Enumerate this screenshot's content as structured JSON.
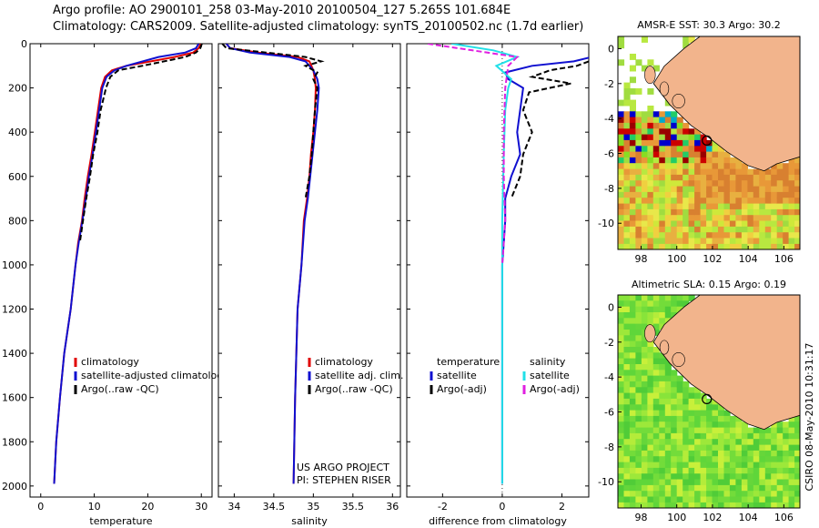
{
  "header": {
    "line1": "Argo profile: AO 2900101_258 03-May-2010 20100504_127 5.265S 101.684E",
    "line2": "Climatology: CARS2009. Satellite-adjusted climatology: synTS_20100502.nc (1.7d earlier)"
  },
  "colors": {
    "climatology": "#e00000",
    "satellite": "#1010d0",
    "argo": "#000000",
    "satellite_sal": "#22e0e8",
    "argo_adj_sal": "#e020e0",
    "land": "#f2b48c",
    "ocean_green": "#33cc33"
  },
  "chart_data": [
    {
      "id": "temperature",
      "type": "line",
      "xlabel": "temperature",
      "ylabel": "",
      "xlim": [
        -2,
        32
      ],
      "ylim": [
        0,
        2050
      ],
      "y_reversed": true,
      "xticks": [
        0,
        10,
        20,
        30
      ],
      "yticks": [
        0,
        200,
        400,
        600,
        800,
        1000,
        1200,
        1400,
        1600,
        1800,
        2000
      ],
      "legend": [
        "climatology",
        "satellite-adjusted climatology",
        "Argo(..raw -QC)"
      ],
      "series": [
        {
          "name": "climatology",
          "color": "#e00000",
          "dash": "",
          "x": [
            29.9,
            29.5,
            28.5,
            25,
            16,
            13.3,
            12,
            11.3,
            10.7,
            10.1,
            9.5,
            8.8,
            8.2,
            7.7,
            7,
            6.5,
            5.6,
            4.4,
            3.6,
            2.9,
            2.5
          ],
          "y": [
            0,
            20,
            40,
            60,
            100,
            120,
            150,
            200,
            300,
            400,
            500,
            600,
            700,
            800,
            900,
            1000,
            1200,
            1400,
            1600,
            1800,
            1990
          ]
        },
        {
          "name": "satellite-adjusted climatology",
          "color": "#1010d0",
          "dash": "",
          "x": [
            29.5,
            29,
            27,
            22,
            16,
            13.8,
            12.3,
            11.5,
            10.9,
            10.3,
            9.7,
            9,
            8.4,
            7.8,
            7.1,
            6.5,
            5.6,
            4.4,
            3.6,
            2.9,
            2.5
          ],
          "y": [
            0,
            20,
            40,
            60,
            100,
            120,
            150,
            200,
            300,
            400,
            500,
            600,
            700,
            800,
            900,
            1000,
            1200,
            1400,
            1600,
            1800,
            1990
          ]
        },
        {
          "name": "Argo(..raw -QC)",
          "color": "#000000",
          "dash": "6,3",
          "x": [
            30.1,
            29.8,
            29,
            27,
            19,
            14.5,
            13,
            12.2,
            11.2,
            10.6,
            9.8,
            9.2,
            8.5,
            7.9,
            7.3
          ],
          "y": [
            0,
            20,
            40,
            60,
            100,
            120,
            150,
            200,
            300,
            400,
            500,
            600,
            700,
            800,
            900
          ]
        }
      ]
    },
    {
      "id": "salinity",
      "type": "line",
      "xlabel": "salinity",
      "ylabel": "",
      "xlim": [
        33.8,
        36.1
      ],
      "ylim": [
        0,
        2050
      ],
      "y_reversed": true,
      "xticks": [
        34,
        34.5,
        35,
        35.5,
        36
      ],
      "yticks": [],
      "legend": [
        "climatology",
        "satellite adj. clim.",
        "Argo(..raw -QC)"
      ],
      "series": [
        {
          "name": "climatology",
          "color": "#e00000",
          "dash": "",
          "x": [
            33.9,
            33.95,
            34.3,
            34.8,
            34.95,
            35.0,
            35.02,
            35.03,
            35.02,
            35.0,
            34.97,
            34.95,
            34.92,
            34.88,
            34.85,
            34.8,
            34.77,
            34.75
          ],
          "y": [
            0,
            20,
            40,
            60,
            80,
            120,
            160,
            200,
            300,
            400,
            500,
            600,
            700,
            800,
            1000,
            1200,
            1600,
            1990
          ]
        },
        {
          "name": "satellite adj. clim.",
          "color": "#1010d0",
          "dash": "",
          "x": [
            33.9,
            33.95,
            34.2,
            34.7,
            34.9,
            35.0,
            35.05,
            35.07,
            35.05,
            35.02,
            34.99,
            34.96,
            34.93,
            34.89,
            34.85,
            34.8,
            34.77,
            34.75
          ],
          "y": [
            0,
            20,
            40,
            60,
            80,
            120,
            160,
            200,
            300,
            400,
            500,
            600,
            700,
            800,
            1000,
            1200,
            1600,
            1990
          ]
        },
        {
          "name": "Argo(..raw -QC)",
          "color": "#000000",
          "dash": "6,3",
          "x": [
            33.85,
            33.9,
            34.4,
            34.9,
            35.1,
            34.9,
            35.05,
            35.0,
            35.05,
            35.02,
            35.0,
            34.98,
            34.95,
            34.9
          ],
          "y": [
            0,
            20,
            40,
            60,
            80,
            100,
            130,
            160,
            200,
            300,
            400,
            500,
            600,
            700
          ]
        }
      ],
      "annotations": [
        "US ARGO PROJECT",
        "PI: STEPHEN RISER"
      ]
    },
    {
      "id": "difference",
      "type": "line",
      "xlabel": "difference from climatology",
      "ylabel": "",
      "xlim": [
        -3.2,
        2.9
      ],
      "ylim": [
        0,
        2050
      ],
      "y_reversed": true,
      "xticks": [
        -2,
        0,
        2
      ],
      "yticks": [],
      "legend_temperature_title": "temperature",
      "legend_salinity_title": "salinity",
      "legend": [
        "satellite",
        "Argo(-adj)",
        "satellite",
        "Argo(-adj)"
      ],
      "series": [
        {
          "name": "satellite",
          "group": "temperature",
          "color": "#1010d0",
          "dash": "",
          "x": [
            3.0,
            2.4,
            1.0,
            0.1,
            0.2,
            0.7,
            0.6,
            0.5,
            0.6,
            0.3,
            0.1,
            0.1,
            0.05,
            0,
            0,
            0
          ],
          "y": [
            60,
            80,
            100,
            130,
            160,
            200,
            300,
            400,
            500,
            600,
            700,
            800,
            900,
            1000,
            1500,
            1990
          ]
        },
        {
          "name": "Argo(-adj)",
          "group": "temperature",
          "color": "#000000",
          "dash": "6,3",
          "x": [
            2.9,
            2.5,
            1.6,
            1.0,
            2.3,
            0.9,
            0.7,
            1.0,
            0.7,
            0.6,
            0.3
          ],
          "y": [
            80,
            100,
            120,
            150,
            180,
            220,
            300,
            400,
            500,
            600,
            700
          ]
        },
        {
          "name": "satellite",
          "group": "salinity",
          "color": "#22e0e8",
          "dash": "",
          "x": [
            -1.7,
            -0.3,
            0.5,
            -0.2,
            0.3,
            0.2,
            0.1,
            0.05,
            0,
            0,
            0,
            0
          ],
          "y": [
            0,
            30,
            60,
            100,
            160,
            200,
            300,
            500,
            800,
            1200,
            1600,
            1990
          ]
        },
        {
          "name": "Argo(-adj)",
          "group": "salinity",
          "color": "#e020e0",
          "dash": "6,3",
          "x": [
            -2.5,
            -1.0,
            0.5,
            0.2,
            0.1,
            0.05,
            0.05,
            0.1,
            0.0
          ],
          "y": [
            0,
            30,
            60,
            100,
            200,
            400,
            600,
            800,
            1000
          ]
        }
      ]
    }
  ],
  "maps": [
    {
      "id": "sst",
      "title": "AMSR-E SST: 30.3 Argo: 30.2",
      "xticks": [
        98,
        100,
        102,
        104,
        106
      ],
      "yticks": [
        0,
        -2,
        -4,
        -6,
        -8,
        -10
      ],
      "xlim": [
        96.7,
        106.9
      ],
      "ylim": [
        -11.5,
        0.7
      ],
      "argo_lon": 101.684,
      "argo_lat": -5.265
    },
    {
      "id": "sla",
      "title": "Altimetric SLA: 0.15 Argo: 0.19",
      "xticks": [
        98,
        100,
        102,
        104,
        106
      ],
      "yticks": [
        0,
        -2,
        -4,
        -6,
        -8,
        -10
      ],
      "xlim": [
        96.7,
        106.9
      ],
      "ylim": [
        -11.5,
        0.7
      ],
      "argo_lon": 101.684,
      "argo_lat": -5.265
    }
  ],
  "credit": "CSIRO 08-May-2010 10:31:17"
}
